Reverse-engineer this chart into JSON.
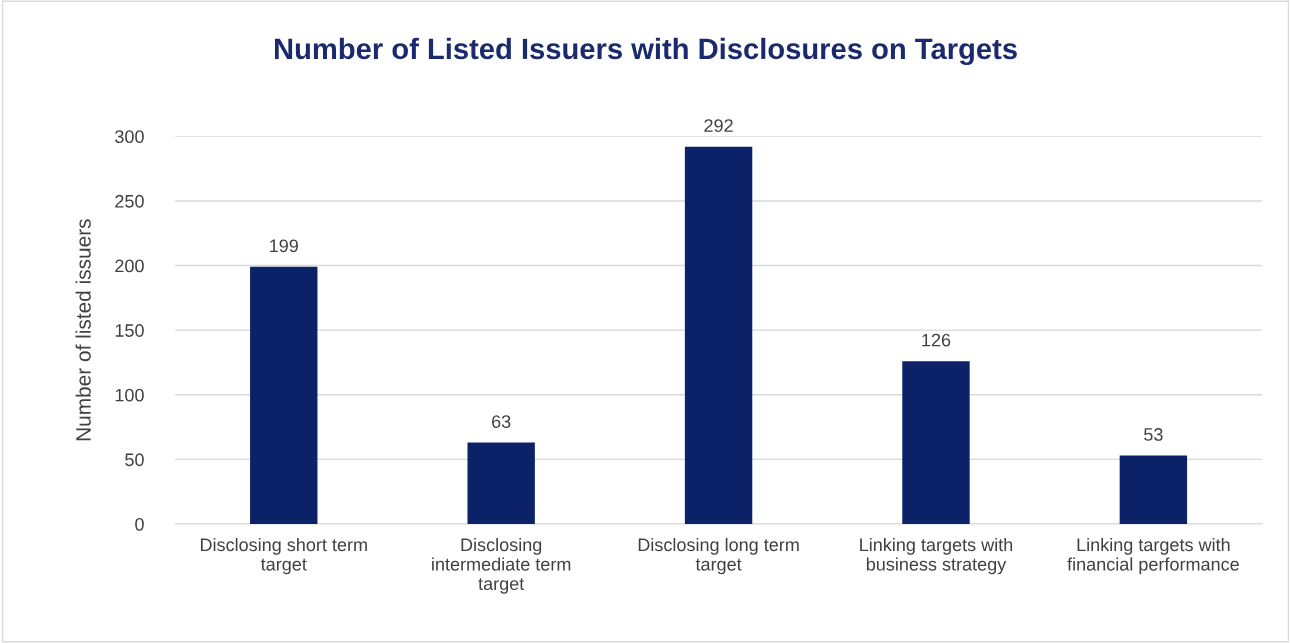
{
  "chart_data": {
    "type": "bar",
    "title": "Number of Listed Issuers with Disclosures on Targets",
    "ylabel": "Number of listed issuers",
    "categories": [
      "Disclosing short term\ntarget",
      "Disclosing\nintermediate term\ntarget",
      "Disclosing long term\ntarget",
      "Linking targets with\nbusiness strategy",
      "Linking targets with\nfinancial performance"
    ],
    "values": [
      199,
      63,
      292,
      126,
      53
    ],
    "color": "#0c2268",
    "ylim": [
      0,
      300
    ],
    "yticks": [
      0,
      50,
      100,
      150,
      200,
      250,
      300
    ],
    "grid": "y",
    "data_labels": true,
    "legend": false
  }
}
